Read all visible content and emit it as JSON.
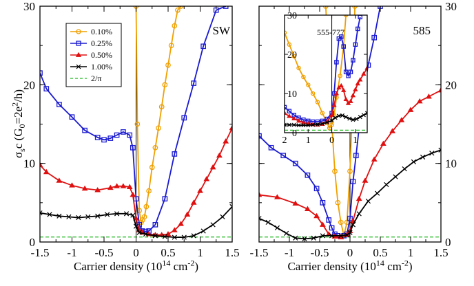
{
  "chart_data": {
    "type": "line",
    "ylabel": "σ_sc (G_0=2e^2/h)",
    "reference_label": "2/π",
    "reference_value": 0.6366,
    "panels": [
      {
        "id": "left",
        "label": "SW",
        "xlabel": "Carrier density (10^14 cm^-2)",
        "xlim": [
          -1.5,
          1.5
        ],
        "ylim": [
          0,
          30
        ],
        "x_ticks": [
          -1.5,
          -1,
          -0.5,
          0,
          0.5,
          1,
          1.5
        ],
        "x_tick_labels": [
          "-1.5",
          "-1",
          "-0.5",
          "0",
          "0.5",
          "1",
          "1.5"
        ],
        "y_ticks": [
          0,
          10,
          20,
          30
        ],
        "y_tick_labels": [
          "0",
          "10",
          "20",
          "30"
        ],
        "series": [
          {
            "name": "0.10%",
            "color": "#f0a000",
            "marker": "circle",
            "x": [
              0.0,
              0.02,
              0.05,
              0.08,
              0.1,
              0.13,
              0.16,
              0.2,
              0.25,
              0.3,
              0.35,
              0.4,
              0.45,
              0.5,
              0.55,
              0.6,
              0.65,
              0.7
            ],
            "y": [
              30,
              15,
              4,
              2.5,
              2.8,
              3.2,
              4.5,
              6.5,
              9.5,
              12,
              14.5,
              17.2,
              20,
              22.5,
              25,
              27.5,
              29.5,
              30
            ]
          },
          {
            "name": "0.25%",
            "color": "#1a1ad0",
            "marker": "square",
            "x": [
              -1.5,
              -1.4,
              -1.2,
              -1.0,
              -0.8,
              -0.6,
              -0.5,
              -0.4,
              -0.3,
              -0.2,
              -0.1,
              -0.05,
              0.0,
              0.05,
              0.1,
              0.15,
              0.2,
              0.3,
              0.45,
              0.6,
              0.75,
              0.9,
              1.05,
              1.25,
              1.4
            ],
            "y": [
              21.5,
              19.5,
              17.5,
              15.9,
              14.2,
              13.3,
              13.0,
              13.2,
              13.6,
              14.0,
              13.6,
              12.0,
              5.5,
              2.2,
              1.4,
              1.3,
              1.4,
              2.2,
              5.5,
              11.2,
              15.8,
              20.2,
              24.9,
              29.5,
              30
            ]
          },
          {
            "name": "0.50%",
            "color": "#e01010",
            "marker": "triangle",
            "x": [
              -1.5,
              -1.4,
              -1.2,
              -1.0,
              -0.8,
              -0.6,
              -0.4,
              -0.3,
              -0.2,
              -0.1,
              -0.05,
              0.0,
              0.05,
              0.1,
              0.2,
              0.3,
              0.4,
              0.5,
              0.6,
              0.7,
              0.8,
              0.9,
              1.0,
              1.1,
              1.2,
              1.3,
              1.4,
              1.5
            ],
            "y": [
              9.8,
              8.9,
              7.8,
              7.2,
              6.8,
              6.6,
              6.9,
              7.1,
              7.1,
              7.0,
              6.0,
              3.0,
              1.5,
              1.2,
              1.0,
              0.9,
              0.9,
              1.0,
              1.5,
              2.3,
              3.5,
              5.0,
              6.5,
              8.0,
              9.5,
              11.0,
              12.8,
              14.5
            ]
          },
          {
            "name": "1.00%",
            "color": "#000000",
            "marker": "cross",
            "x": [
              -1.5,
              -1.35,
              -1.2,
              -1.05,
              -0.9,
              -0.75,
              -0.6,
              -0.45,
              -0.3,
              -0.15,
              -0.05,
              0.0,
              0.05,
              0.15,
              0.3,
              0.45,
              0.6,
              0.75,
              0.9,
              1.05,
              1.2,
              1.35,
              1.5
            ],
            "y": [
              3.7,
              3.5,
              3.3,
              3.2,
              3.1,
              3.2,
              3.3,
              3.5,
              3.6,
              3.6,
              3.4,
              2.0,
              1.2,
              1.0,
              0.8,
              0.7,
              0.6,
              0.6,
              0.8,
              1.4,
              2.2,
              3.2,
              4.5
            ]
          }
        ],
        "legend": {
          "placement": "top-left",
          "entries": [
            "0.10%",
            "0.25%",
            "0.50%",
            "1.00%",
            "2/π"
          ]
        }
      },
      {
        "id": "right",
        "label": "585",
        "xlabel": "Carrier density (10^14 cm^-2)",
        "xlim": [
          -1.5,
          1.5
        ],
        "ylim": [
          0,
          30
        ],
        "x_ticks": [
          -1.5,
          -1,
          -0.5,
          0,
          0.5,
          1,
          1.5
        ],
        "x_tick_labels": [
          "-1.5",
          "-1",
          "-0.5",
          "0",
          "0.5",
          "1",
          "1.5"
        ],
        "y_ticks": [
          0,
          10,
          20,
          30
        ],
        "y_tick_labels": [
          "0",
          "10",
          "20",
          "30"
        ],
        "series": [
          {
            "name": "0.10%",
            "color": "#f0a000",
            "marker": "circle",
            "x": [
              -0.4,
              -0.3,
              -0.25,
              -0.2,
              -0.15,
              -0.1,
              -0.05,
              0.0,
              0.03,
              0.06,
              0.08
            ],
            "y": [
              30,
              15,
              9,
              5,
              2.5,
              0.8,
              2.5,
              9.0,
              15,
              22,
              30
            ]
          },
          {
            "name": "0.25%",
            "color": "#1a1ad0",
            "marker": "square",
            "x": [
              -1.5,
              -1.3,
              -1.1,
              -0.9,
              -0.7,
              -0.55,
              -0.45,
              -0.35,
              -0.3,
              -0.25,
              -0.2,
              -0.1,
              -0.05,
              0.0,
              0.05,
              0.1,
              0.15,
              0.2,
              0.3,
              0.4,
              0.5
            ],
            "y": [
              13.5,
              12.0,
              11.0,
              10.0,
              8.5,
              6.8,
              5.0,
              2.8,
              1.8,
              1.0,
              0.8,
              0.8,
              1.0,
              3.0,
              7.7,
              11.0,
              14.5,
              18.0,
              22.5,
              26.0,
              30
            ]
          },
          {
            "name": "0.50%",
            "color": "#e01010",
            "marker": "triangle",
            "x": [
              -1.5,
              -1.2,
              -0.9,
              -0.7,
              -0.55,
              -0.45,
              -0.35,
              -0.25,
              -0.15,
              -0.05,
              0.0,
              0.05,
              0.15,
              0.25,
              0.4,
              0.55,
              0.7,
              0.85,
              1.0,
              1.15,
              1.3,
              1.5
            ],
            "y": [
              6.0,
              5.7,
              4.9,
              4.2,
              3.3,
              2.2,
              1.0,
              0.7,
              0.6,
              0.9,
              1.4,
              2.7,
              5.5,
              7.8,
              10.5,
              12.5,
              14.1,
              15.5,
              16.8,
              17.9,
              18.5,
              19.3
            ]
          },
          {
            "name": "1.00%",
            "color": "#000000",
            "marker": "cross",
            "x": [
              -1.5,
              -1.35,
              -1.2,
              -1.05,
              -0.9,
              -0.75,
              -0.6,
              -0.45,
              -0.3,
              -0.15,
              -0.05,
              0.0,
              0.05,
              0.15,
              0.3,
              0.45,
              0.6,
              0.75,
              0.9,
              1.05,
              1.2,
              1.35,
              1.5
            ],
            "y": [
              3.0,
              2.5,
              1.8,
              1.1,
              0.5,
              0.4,
              0.5,
              0.8,
              0.8,
              0.8,
              0.9,
              1.2,
              2.2,
              3.6,
              5.2,
              6.2,
              7.3,
              8.3,
              9.3,
              10.2,
              10.8,
              11.3,
              11.7
            ]
          }
        ]
      },
      {
        "id": "inset",
        "label": "555-777",
        "xlim": [
          -2,
          1.5
        ],
        "ylim": [
          0,
          30
        ],
        "x_ticks": [
          -2,
          -1,
          0,
          1
        ],
        "x_tick_labels": [
          "2",
          "1",
          "0",
          "1"
        ],
        "y_ticks": [
          0,
          10,
          20,
          30
        ],
        "y_tick_labels": [
          "0",
          "10",
          "20",
          "30"
        ],
        "series": [
          {
            "name": "0.10%",
            "color": "#f0a000",
            "marker": "circle",
            "x": [
              -2.0,
              -1.8,
              -1.6,
              -1.4,
              -1.2,
              -1.0,
              -0.8,
              -0.6,
              -0.4,
              -0.2,
              -0.1,
              0.0,
              0.1,
              0.2,
              0.35,
              0.5,
              0.6
            ],
            "y": [
              25.5,
              22.5,
              19.5,
              16.5,
              14.2,
              12.2,
              10.0,
              7.8,
              5.0,
              2.5,
              1.2,
              2.0,
              4.5,
              9.0,
              14.5,
              22.0,
              30
            ]
          },
          {
            "name": "0.25%",
            "color": "#1a1ad0",
            "marker": "square",
            "x": [
              -2.0,
              -1.8,
              -1.6,
              -1.4,
              -1.2,
              -1.0,
              -0.8,
              -0.6,
              -0.4,
              -0.2,
              0.0,
              0.1,
              0.2,
              0.3,
              0.4,
              0.5,
              0.6,
              0.7,
              0.8,
              0.9,
              1.0,
              1.1,
              1.2
            ],
            "y": [
              6.5,
              5.5,
              4.5,
              3.8,
              3.3,
              3.0,
              2.8,
              2.8,
              3.0,
              3.5,
              5.0,
              10.0,
              18.0,
              24.0,
              24.5,
              22.0,
              15.5,
              14.5,
              15.5,
              18.5,
              22.5,
              26.5,
              29.5
            ]
          },
          {
            "name": "0.50%",
            "color": "#e01010",
            "marker": "triangle",
            "x": [
              -2.0,
              -1.8,
              -1.6,
              -1.4,
              -1.2,
              -1.0,
              -0.8,
              -0.6,
              -0.4,
              -0.2,
              0.0,
              0.1,
              0.2,
              0.3,
              0.4,
              0.5,
              0.6,
              0.7,
              0.8,
              0.9,
              1.0,
              1.1,
              1.2,
              1.35,
              1.5
            ],
            "y": [
              5.0,
              4.2,
              3.6,
              3.0,
              2.6,
              2.3,
              2.1,
              2.0,
              2.2,
              2.8,
              4.5,
              7.0,
              10.0,
              11.5,
              12.0,
              10.8,
              8.5,
              7.5,
              8.0,
              9.5,
              11.0,
              12.5,
              13.5,
              15.0,
              16.5
            ]
          },
          {
            "name": "1.00%",
            "color": "#000000",
            "marker": "cross",
            "x": [
              -2.0,
              -1.8,
              -1.6,
              -1.4,
              -1.2,
              -1.0,
              -0.8,
              -0.6,
              -0.4,
              -0.2,
              0.0,
              0.15,
              0.3,
              0.45,
              0.6,
              0.75,
              0.9,
              1.05,
              1.2,
              1.35,
              1.5
            ],
            "y": [
              2.0,
              2.0,
              2.0,
              1.9,
              1.9,
              1.9,
              2.0,
              2.1,
              2.3,
              2.6,
              3.1,
              3.8,
              4.3,
              4.4,
              4.0,
              3.6,
              3.3,
              3.5,
              4.0,
              4.5,
              5.0
            ]
          }
        ]
      }
    ]
  }
}
